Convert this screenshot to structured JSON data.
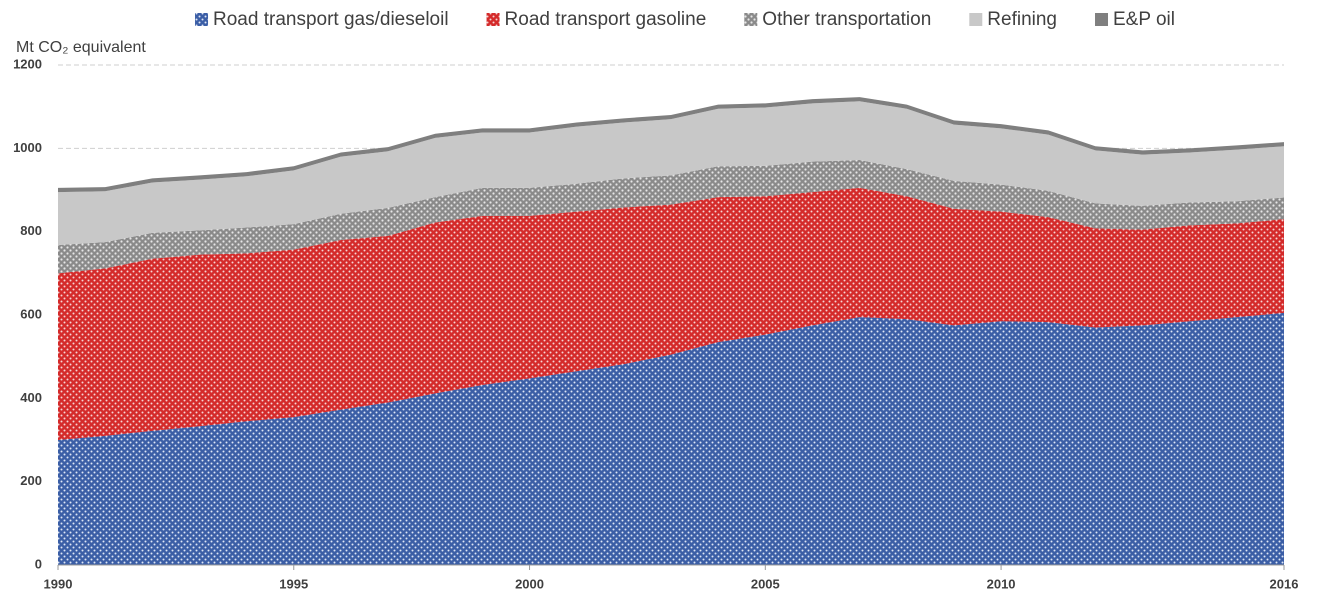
{
  "chart_data": {
    "type": "stacked_area",
    "y_label": "Mt CO₂ equivalent",
    "x": [
      1990,
      1991,
      1992,
      1993,
      1994,
      1995,
      1996,
      1997,
      1998,
      1999,
      2000,
      2001,
      2002,
      2003,
      2004,
      2005,
      2006,
      2007,
      2008,
      2009,
      2010,
      2011,
      2012,
      2013,
      2014,
      2015,
      2016
    ],
    "xlim": [
      1990,
      2016
    ],
    "xticks": [
      1990,
      1995,
      2000,
      2005,
      2010,
      2016
    ],
    "ylim": [
      0,
      1200
    ],
    "yticks": [
      0,
      200,
      400,
      600,
      800,
      1000,
      1200
    ],
    "grid": true,
    "legend": "top",
    "series": [
      {
        "name": "Road transport gas/dieseloil",
        "color": "#3b5ea6",
        "values": [
          300,
          310,
          322,
          333,
          345,
          355,
          373,
          390,
          412,
          432,
          448,
          465,
          482,
          505,
          535,
          553,
          575,
          595,
          590,
          575,
          585,
          583,
          570,
          575,
          585,
          595,
          605
        ]
      },
      {
        "name": "Road transport gasoline",
        "color": "#d42a2a",
        "values": [
          400,
          402,
          413,
          412,
          403,
          402,
          407,
          400,
          410,
          406,
          390,
          383,
          376,
          360,
          348,
          332,
          320,
          310,
          295,
          280,
          263,
          252,
          238,
          230,
          230,
          225,
          225
        ]
      },
      {
        "name": "Other transportation",
        "color": "#8a8a8a",
        "values": [
          68,
          63,
          62,
          58,
          62,
          61,
          63,
          67,
          61,
          67,
          67,
          67,
          70,
          70,
          74,
          73,
          73,
          67,
          65,
          67,
          65,
          63,
          60,
          57,
          55,
          53,
          52
        ]
      },
      {
        "name": "Refining",
        "color": "#c8c8c8",
        "values": [
          127,
          122,
          121,
          122,
          123,
          129,
          137,
          136,
          142,
          133,
          133,
          137,
          134,
          135,
          138,
          140,
          140,
          141,
          145,
          135,
          135,
          135,
          127,
          123,
          120,
          124,
          123
        ]
      },
      {
        "name": "E&P oil",
        "color": "#7f7f7f",
        "values": [
          10,
          10,
          10,
          10,
          10,
          10,
          10,
          10,
          10,
          10,
          10,
          10,
          10,
          10,
          10,
          10,
          10,
          10,
          10,
          10,
          10,
          10,
          10,
          10,
          10,
          10,
          10
        ]
      }
    ]
  }
}
